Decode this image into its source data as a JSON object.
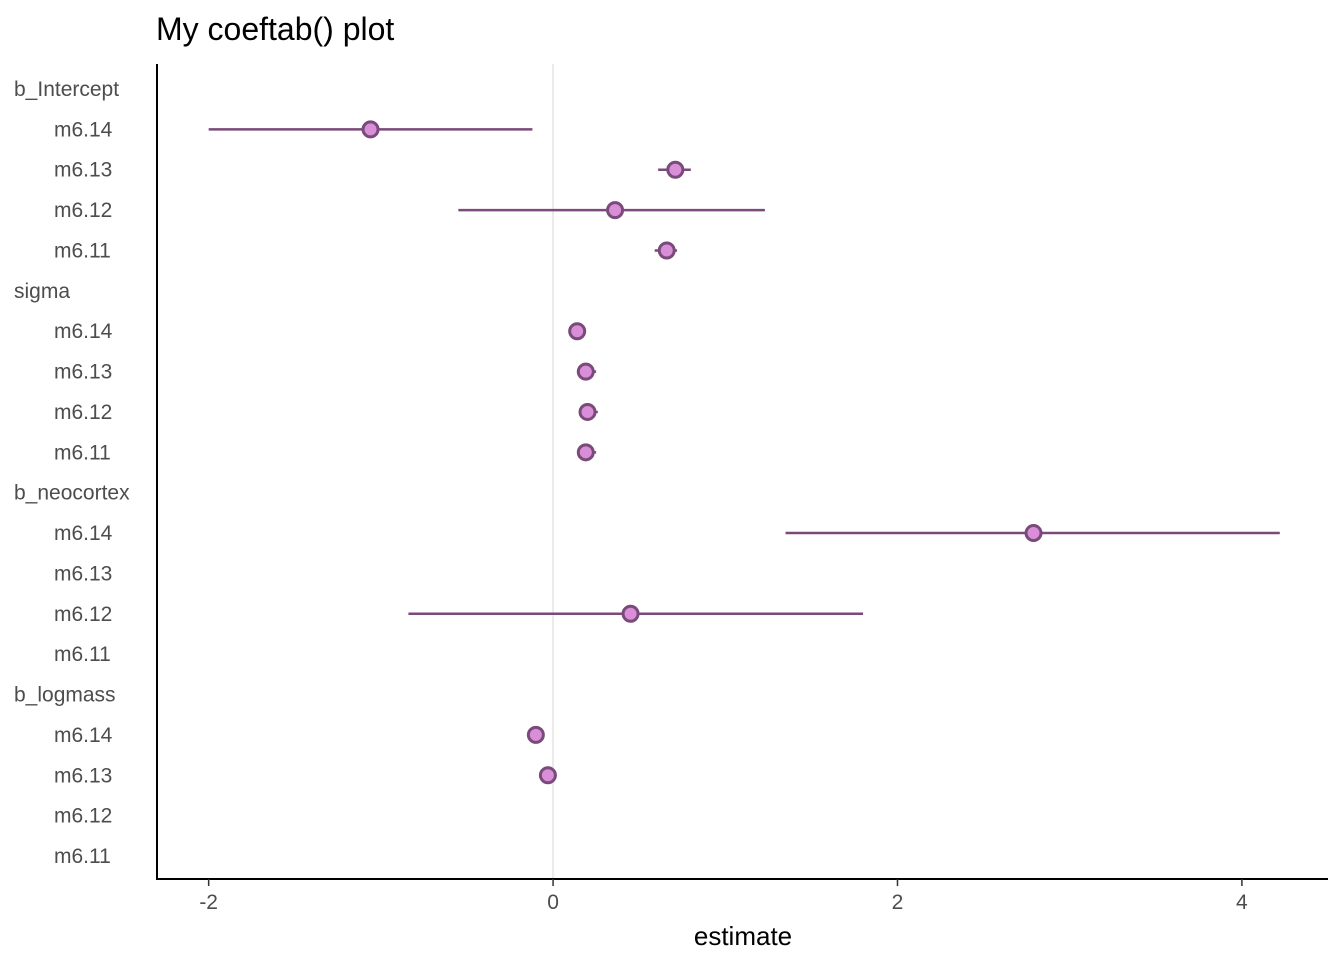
{
  "chart_data": {
    "type": "scatter",
    "title": "My coeftab() plot",
    "xlabel": "estimate",
    "ylabel": "",
    "xlim": [
      -2.3,
      4.5
    ],
    "xticks": [
      -2,
      0,
      2,
      4
    ],
    "zero_line": 0,
    "grid": false,
    "legend": "none",
    "colors": {
      "point_fill": "#d88fd8",
      "point_stroke": "#7a4a7a",
      "interval": "#7a4a7a",
      "zero_line": "#ebebeb",
      "axis": "#000000"
    },
    "groups": [
      {
        "label": "b_Intercept",
        "rows": [
          {
            "model": "m6.14",
            "estimate": -1.06,
            "lower": -2.0,
            "upper": -0.12
          },
          {
            "model": "m6.13",
            "estimate": 0.71,
            "lower": 0.61,
            "upper": 0.8
          },
          {
            "model": "m6.12",
            "estimate": 0.36,
            "lower": -0.55,
            "upper": 1.23
          },
          {
            "model": "m6.11",
            "estimate": 0.66,
            "lower": 0.59,
            "upper": 0.72
          }
        ]
      },
      {
        "label": "sigma",
        "rows": [
          {
            "model": "m6.14",
            "estimate": 0.14,
            "lower": 0.11,
            "upper": 0.17
          },
          {
            "model": "m6.13",
            "estimate": 0.19,
            "lower": 0.15,
            "upper": 0.25
          },
          {
            "model": "m6.12",
            "estimate": 0.2,
            "lower": 0.16,
            "upper": 0.26
          },
          {
            "model": "m6.11",
            "estimate": 0.19,
            "lower": 0.15,
            "upper": 0.25
          }
        ]
      },
      {
        "label": "b_neocortex",
        "rows": [
          {
            "model": "m6.14",
            "estimate": 2.79,
            "lower": 1.35,
            "upper": 4.22
          },
          {
            "model": "m6.13",
            "estimate": null,
            "lower": null,
            "upper": null
          },
          {
            "model": "m6.12",
            "estimate": 0.45,
            "lower": -0.84,
            "upper": 1.8
          },
          {
            "model": "m6.11",
            "estimate": null,
            "lower": null,
            "upper": null
          }
        ]
      },
      {
        "label": "b_logmass",
        "rows": [
          {
            "model": "m6.14",
            "estimate": -0.1,
            "lower": -0.13,
            "upper": -0.07
          },
          {
            "model": "m6.13",
            "estimate": -0.03,
            "lower": -0.06,
            "upper": 0.0
          },
          {
            "model": "m6.12",
            "estimate": null,
            "lower": null,
            "upper": null
          },
          {
            "model": "m6.11",
            "estimate": null,
            "lower": null,
            "upper": null
          }
        ]
      }
    ]
  }
}
